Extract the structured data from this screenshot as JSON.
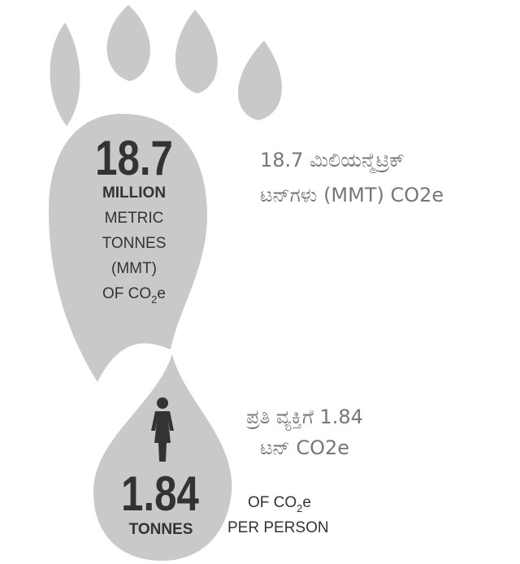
{
  "footprint": {
    "total": {
      "number": "18.7",
      "lines": [
        "MILLION",
        "METRIC",
        "TONNES",
        "(MMT)"
      ],
      "last_line": {
        "text": "OF CO",
        "subscript": "2",
        "suffix": "e"
      }
    },
    "total_translation": [
      "18.7 ಮಿಲಿಯನ್ಮೆಟ್ರಿಕ್",
      "ಟನ್‌ಗಳು (MMT) CO2e"
    ],
    "per_person": {
      "number": "1.84",
      "unit": "TONNES",
      "label_line1": {
        "text": "OF CO",
        "subscript": "2",
        "suffix": "e"
      },
      "label_line2": "PER PERSON"
    },
    "per_person_translation": [
      "ಪ್ರತಿ ವ್ಯಕ್ತಿಗೆ 1.84",
      "ಟನ್ CO2e"
    ]
  }
}
